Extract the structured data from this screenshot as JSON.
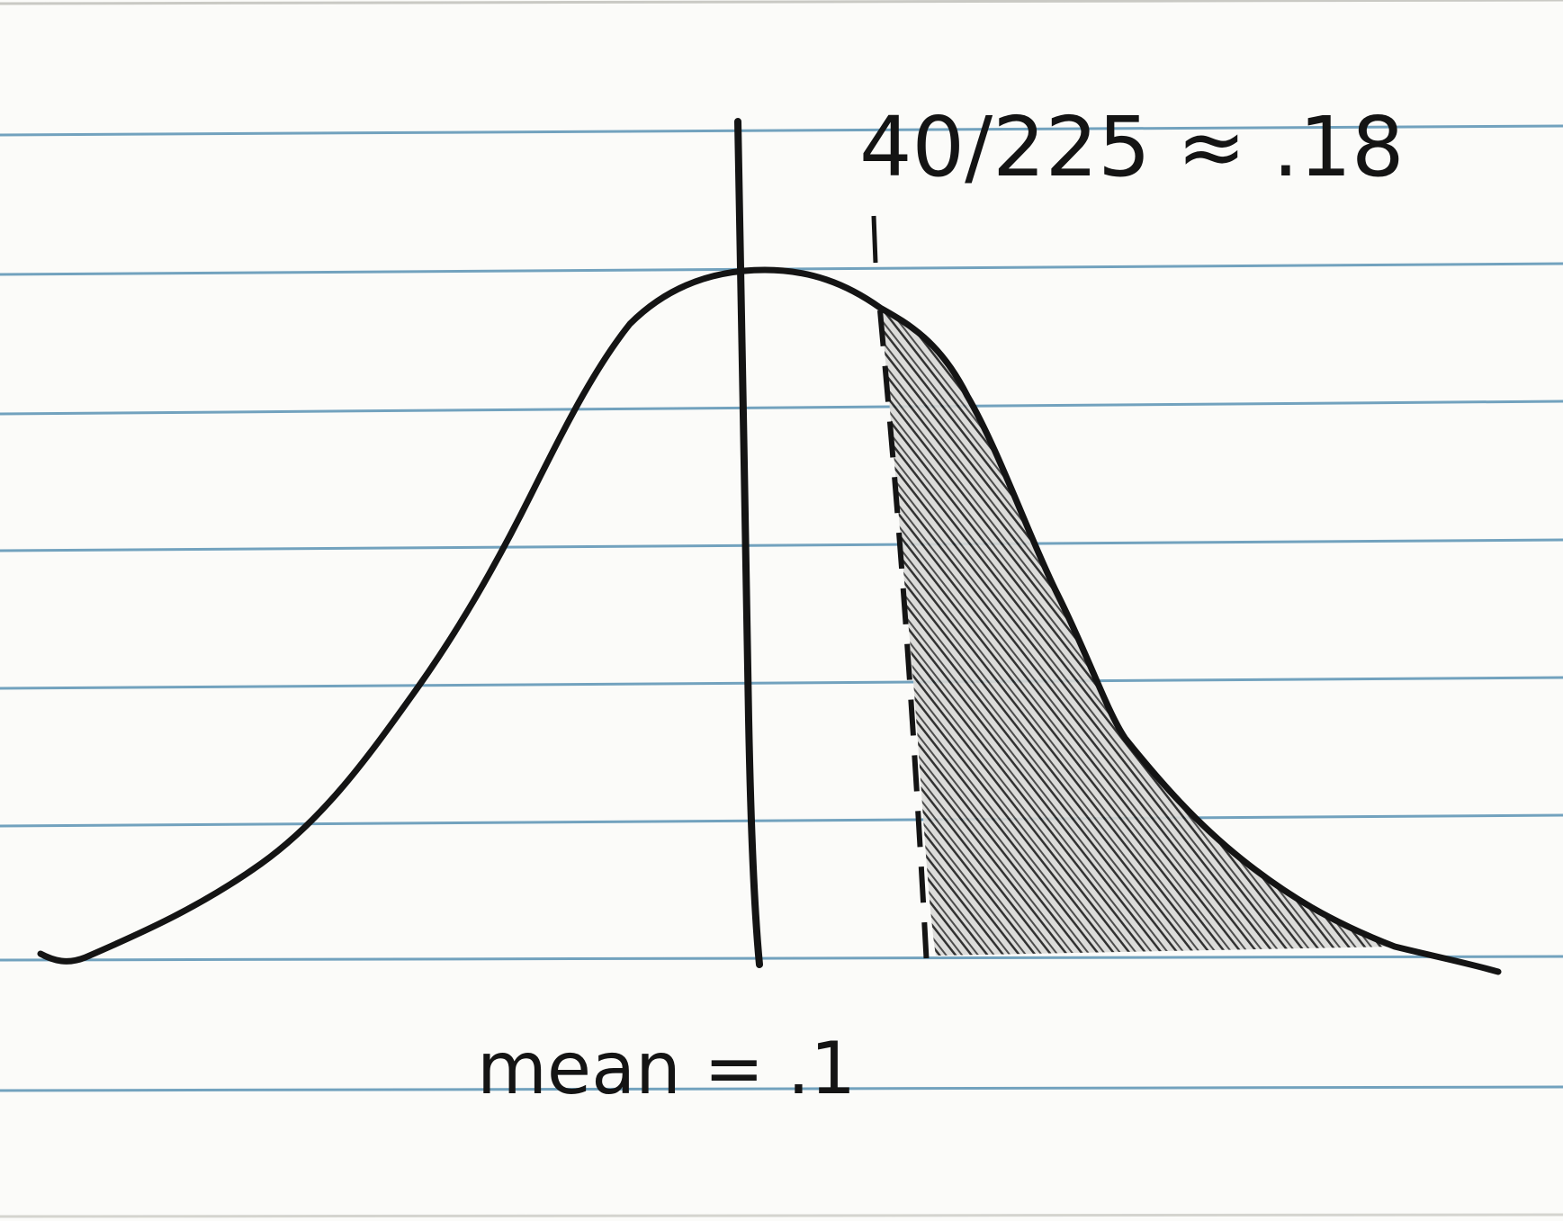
{
  "diagram": {
    "type": "normal-curve-sketch",
    "paper": {
      "background": "#fbfbf9",
      "rule_color": "#5b93b4",
      "ink_color": "#141414"
    },
    "annotation_top": "40/225 ≈ .18",
    "annotation_bottom": "mean = .1",
    "shaded_region": "right-tail"
  }
}
